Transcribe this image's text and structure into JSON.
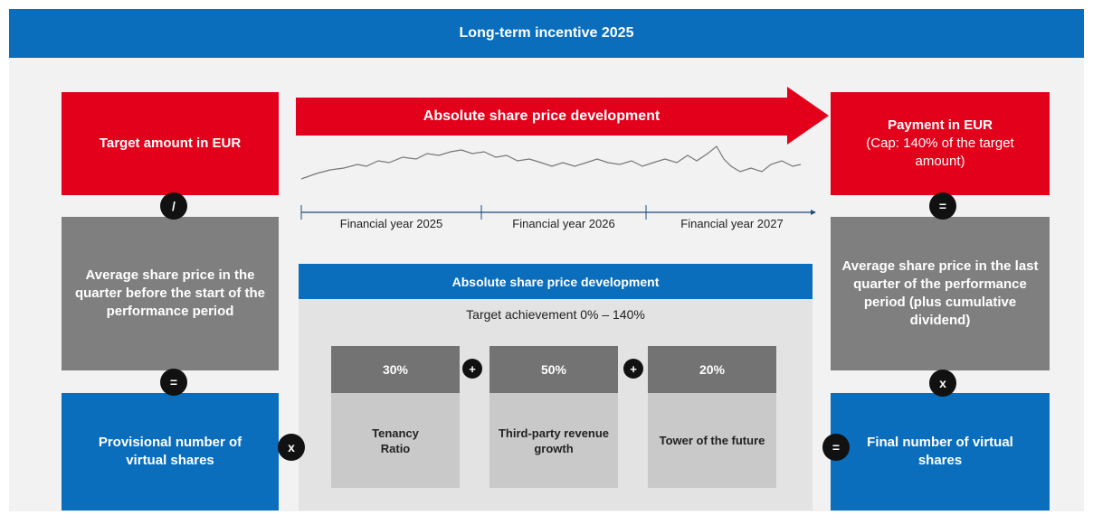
{
  "title": "Long-term incentive 2025",
  "left": {
    "target": "Target amount in EUR",
    "price": "Average share price in the quarter before the start of the performance period",
    "provisional": "Provisional number of virtual shares"
  },
  "right": {
    "payment": "Payment in EUR",
    "cap": "(Cap: 140% of the target amount)",
    "price": "Average share price in the last quarter of the performance period (plus cumulative dividend)",
    "final": "Final number of virtual shares"
  },
  "operators": {
    "divide": "/",
    "left_equals": "=",
    "left_times": "x",
    "right_equals_top": "=",
    "right_times": "x",
    "right_equals": "=",
    "plus": "+"
  },
  "arrow_label": "Absolute share price development",
  "timeline": [
    "Financial year 2025",
    "Financial year 2026",
    "Financial year 2027"
  ],
  "panel": {
    "title": "Absolute share price development",
    "subtitle": "Target achievement 0% – 140%",
    "components": [
      {
        "weight": "30%",
        "label": "Tenancy Ratio"
      },
      {
        "weight": "50%",
        "label": "Third-party revenue growth"
      },
      {
        "weight": "20%",
        "label": "Tower of the future"
      }
    ]
  }
}
